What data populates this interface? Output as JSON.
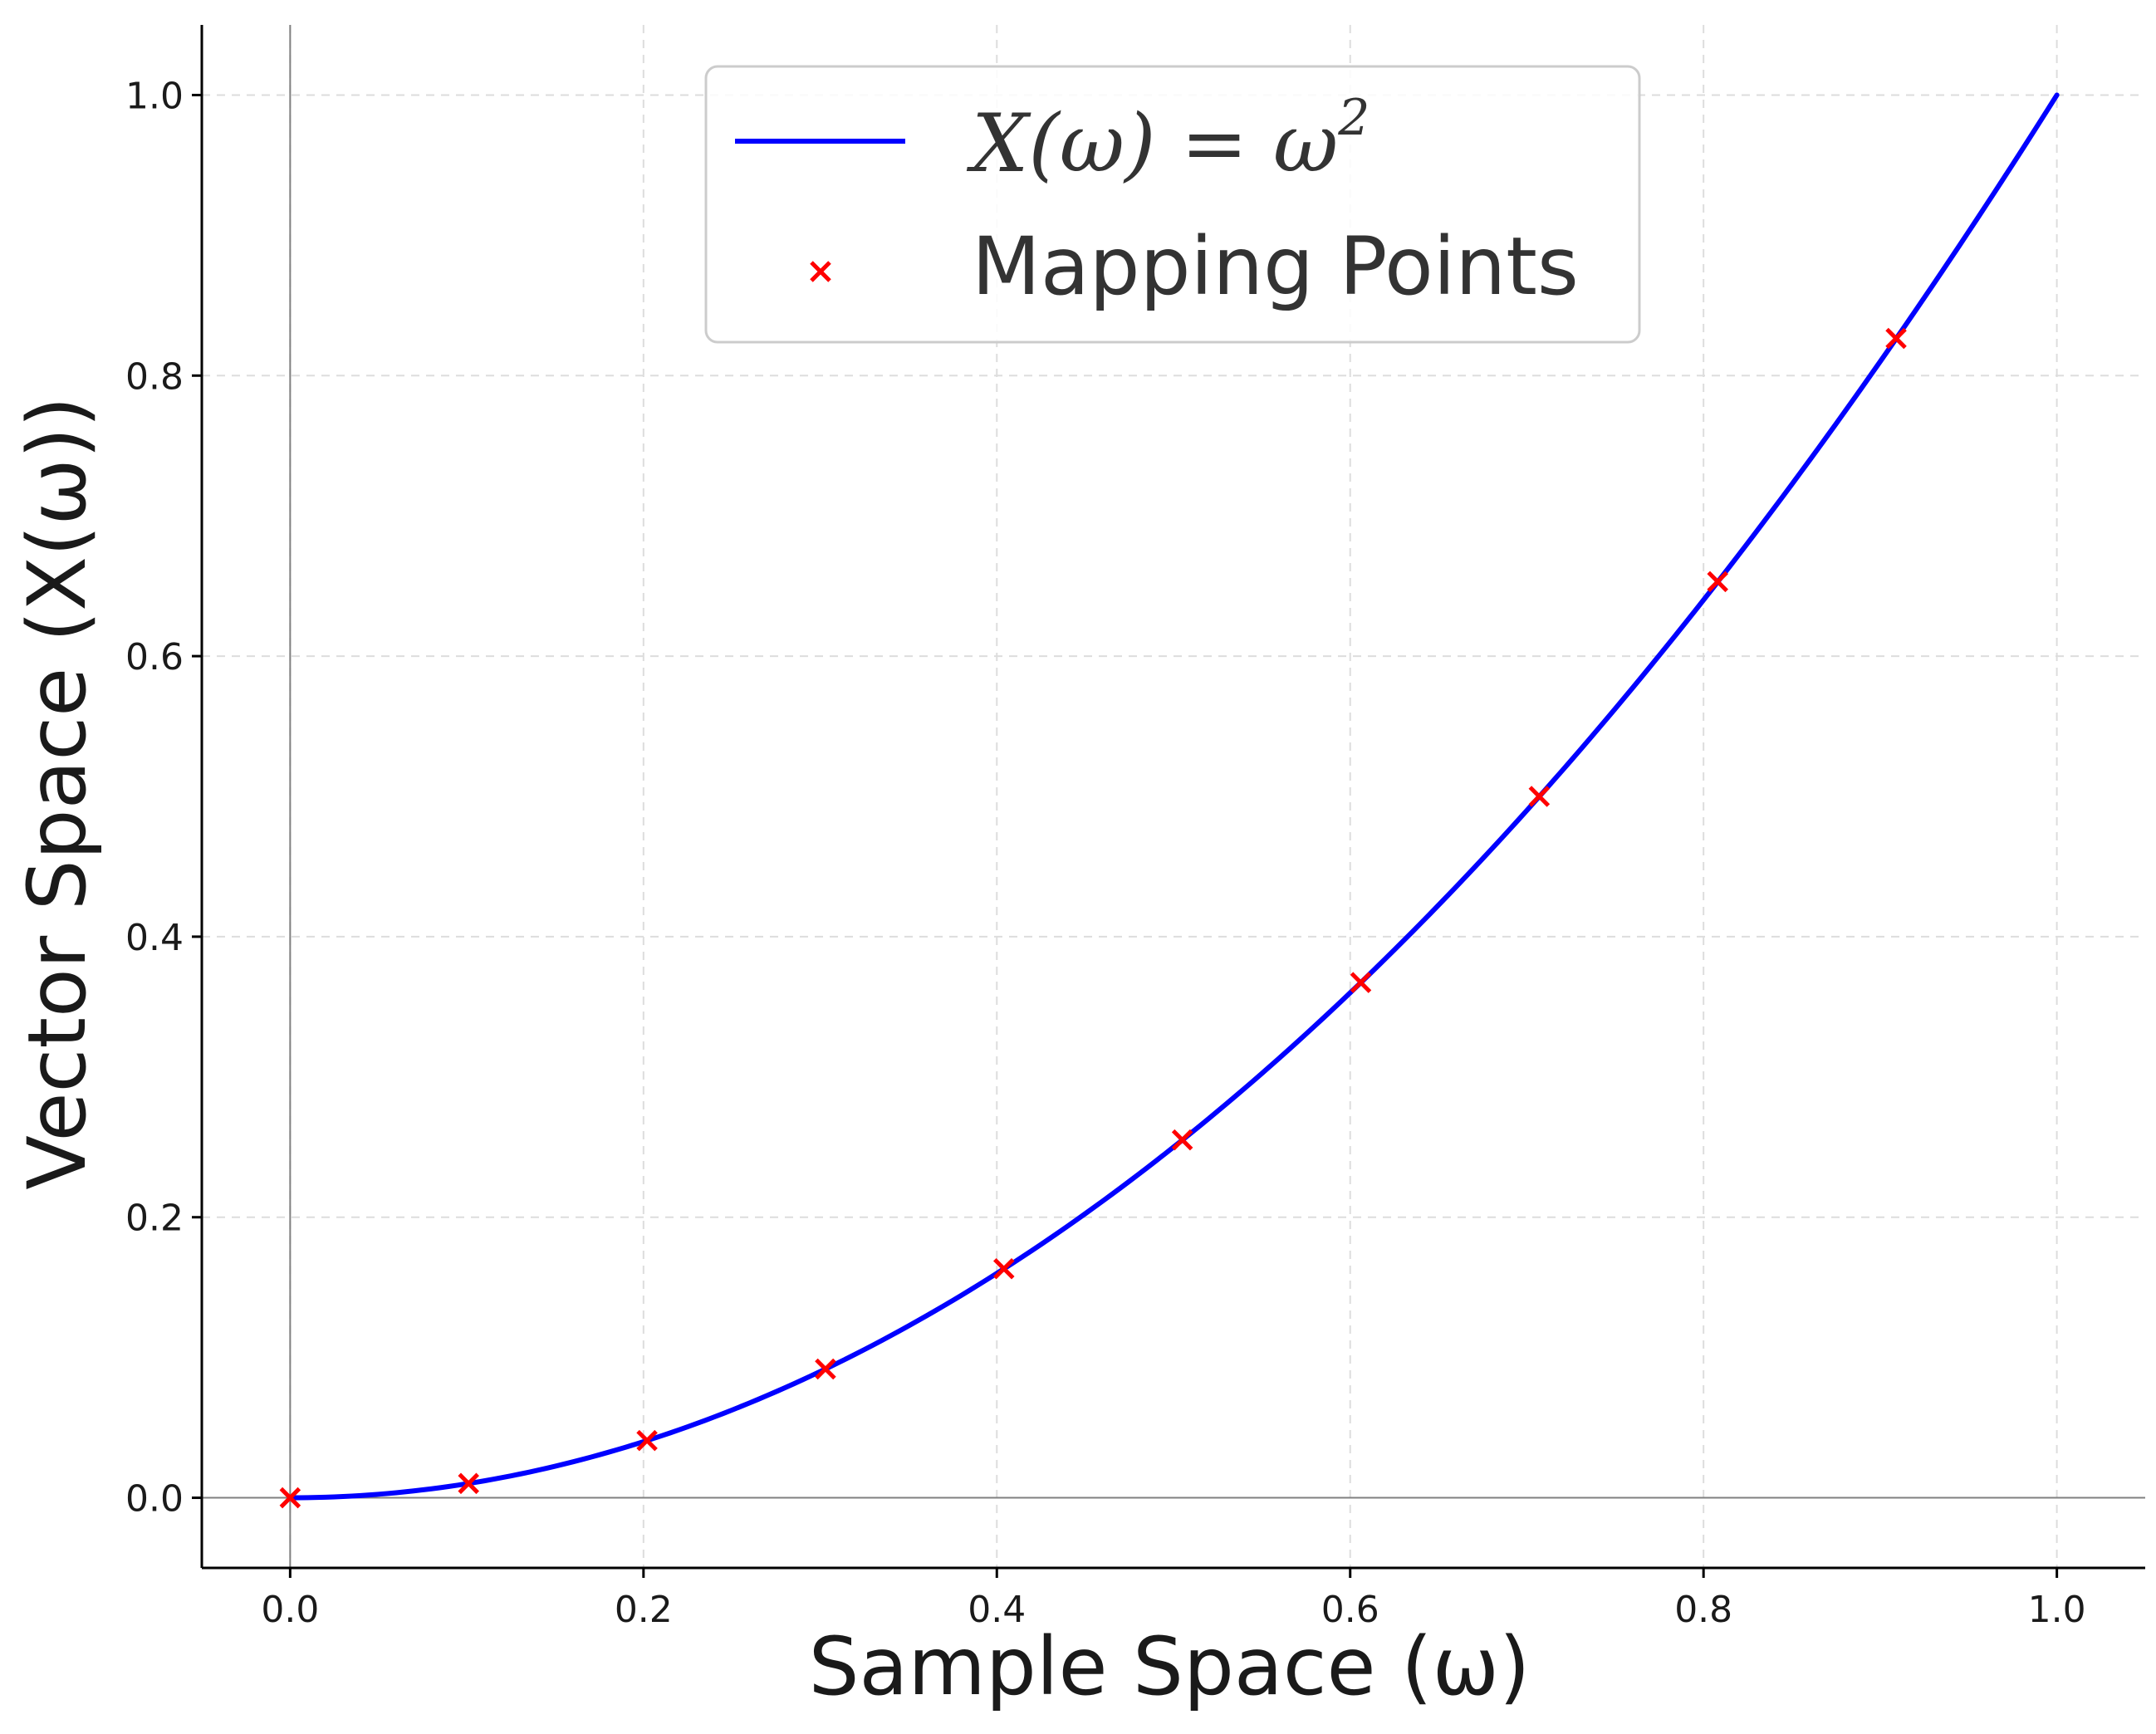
{
  "chart_data": {
    "type": "line",
    "xlabel": "Sample Space (ω)",
    "ylabel": "Vector Space (X(ω))",
    "xlim": [
      -0.05,
      1.05
    ],
    "ylim": [
      -0.05,
      1.05
    ],
    "xticks": [
      0.0,
      0.2,
      0.4,
      0.6,
      0.8,
      1.0
    ],
    "yticks": [
      0.0,
      0.2,
      0.4,
      0.6,
      0.8,
      1.0
    ],
    "xtick_labels": [
      "0.0",
      "0.2",
      "0.4",
      "0.6",
      "0.8",
      "1.0"
    ],
    "ytick_labels": [
      "0.0",
      "0.2",
      "0.4",
      "0.6",
      "0.8",
      "1.0"
    ],
    "grid": true,
    "legend_position": "top-center",
    "series": [
      {
        "name": "X(ω) = ω²",
        "legend_parts": {
          "base": "X(ω) = ω",
          "sup": "2"
        },
        "kind": "line",
        "color": "#0000ff",
        "function": "x^2",
        "x_range": [
          0,
          1
        ]
      },
      {
        "name": "Mapping Points",
        "kind": "scatter",
        "marker": "x",
        "color": "#ff0000",
        "x": [
          0.0,
          0.101,
          0.202,
          0.303,
          0.404,
          0.505,
          0.606,
          0.707,
          0.808,
          0.909
        ],
        "y": [
          0.0,
          0.0102,
          0.0408,
          0.0918,
          0.1633,
          0.2551,
          0.3673,
          0.5,
          0.6531,
          0.8265
        ]
      }
    ]
  }
}
